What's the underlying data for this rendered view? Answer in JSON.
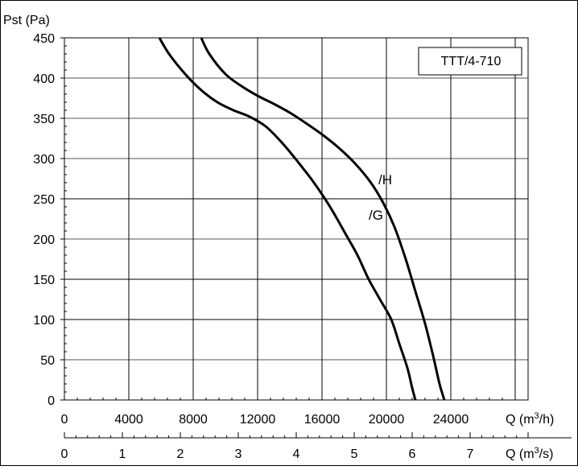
{
  "chart_data": {
    "type": "line",
    "model_label": "TTT/4-710",
    "ylabel": "Pst (Pa)",
    "xlabel": "Q (m³/h)",
    "x2label": "Q (m³/s)",
    "xlim": [
      0,
      28800
    ],
    "ylim": [
      0,
      450
    ],
    "x_ticks": [
      0,
      4000,
      8000,
      12000,
      16000,
      20000,
      24000
    ],
    "x2_ticks": [
      0,
      1,
      2,
      3,
      4,
      5,
      6,
      7
    ],
    "y_ticks": [
      0,
      50,
      100,
      150,
      200,
      250,
      300,
      350,
      400,
      450
    ],
    "grid": true,
    "series": [
      {
        "name": "/H",
        "x": [
          8500,
          9000,
          10000,
          11000,
          12000,
          13000,
          14000,
          15000,
          16000,
          17000,
          18000,
          19000,
          19800,
          20500,
          21200,
          21800,
          22400,
          22900,
          23300,
          23600
        ],
        "y": [
          450,
          430,
          405,
          390,
          378,
          368,
          357,
          344,
          330,
          314,
          295,
          271,
          245,
          215,
          175,
          135,
          95,
          55,
          20,
          0
        ]
      },
      {
        "name": "/G",
        "x": [
          5900,
          6500,
          7500,
          8500,
          9500,
          10500,
          11500,
          12500,
          13500,
          14500,
          15500,
          16500,
          17500,
          18200,
          18900,
          19600,
          20300,
          20800,
          21300,
          21600,
          21800
        ],
        "y": [
          450,
          430,
          405,
          385,
          370,
          360,
          352,
          340,
          320,
          296,
          270,
          240,
          205,
          180,
          150,
          125,
          100,
          70,
          40,
          15,
          0
        ]
      }
    ],
    "label_positions": {
      "/H": [
        19500,
        268
      ],
      "/G": [
        18900,
        224
      ]
    }
  }
}
